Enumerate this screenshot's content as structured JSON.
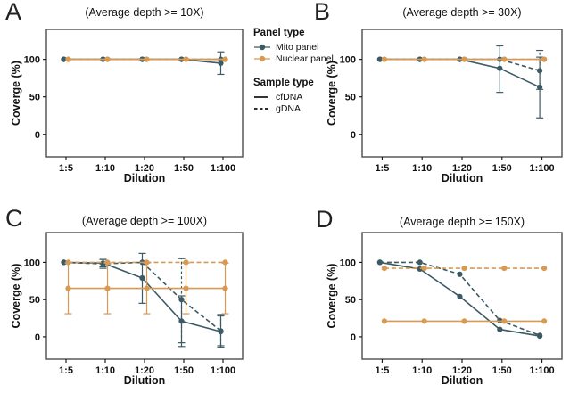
{
  "colors": {
    "mito": "#3c5a64",
    "nuclear": "#d79a55",
    "axis": "#4d4d4d",
    "text": "#111111",
    "sample_glyph": "#111111"
  },
  "legend": {
    "panel_type_title": "Panel type",
    "panel_items": [
      {
        "key": "mito",
        "label": "Mito panel"
      },
      {
        "key": "nuclear",
        "label": "Nuclear panel"
      }
    ],
    "sample_type_title": "Sample type",
    "sample_items": [
      {
        "key": "cfDNA",
        "label": "cfDNA",
        "dashed": false
      },
      {
        "key": "gDNA",
        "label": "gDNA",
        "dashed": true
      }
    ]
  },
  "chart_data": [
    {
      "type": "line",
      "label": "A",
      "title": "(Average depth >= 10X)",
      "xlabel": "Dilution",
      "ylabel": "Coverge (%)",
      "categories": [
        "1:5",
        "1:10",
        "1:20",
        "1:50",
        "1:100"
      ],
      "yticks": [
        0,
        50,
        100
      ],
      "ylim": [
        -30,
        140
      ],
      "grid": false,
      "series": [
        {
          "name": "Mito panel cfDNA",
          "panel": "mito",
          "sample": "cfDNA",
          "dashed": false,
          "values": [
            100,
            100,
            100,
            100,
            95
          ],
          "err_lo": [
            null,
            null,
            null,
            null,
            80
          ],
          "err_hi": [
            null,
            null,
            null,
            null,
            110
          ]
        },
        {
          "name": "Mito panel gDNA",
          "panel": "mito",
          "sample": "gDNA",
          "dashed": true,
          "values": [
            100,
            100,
            100,
            100,
            100
          ],
          "err_lo": [
            null,
            null,
            null,
            null,
            null
          ],
          "err_hi": [
            null,
            null,
            null,
            null,
            null
          ]
        },
        {
          "name": "Nuclear panel cfDNA",
          "panel": "nuclear",
          "sample": "cfDNA",
          "dashed": false,
          "values": [
            100,
            100,
            100,
            100,
            100
          ],
          "err_lo": [
            null,
            null,
            null,
            null,
            null
          ],
          "err_hi": [
            null,
            null,
            null,
            null,
            null
          ]
        },
        {
          "name": "Nuclear panel gDNA",
          "panel": "nuclear",
          "sample": "gDNA",
          "dashed": true,
          "values": [
            100,
            100,
            100,
            100,
            100
          ],
          "err_lo": [
            null,
            null,
            null,
            null,
            null
          ],
          "err_hi": [
            null,
            null,
            null,
            null,
            null
          ]
        }
      ]
    },
    {
      "type": "line",
      "label": "B",
      "title": "(Average depth >= 30X)",
      "xlabel": "Dilution",
      "ylabel": "Coverge (%)",
      "categories": [
        "1:5",
        "1:10",
        "1:20",
        "1:50",
        "1:100"
      ],
      "yticks": [
        0,
        50,
        100
      ],
      "ylim": [
        -30,
        140
      ],
      "grid": false,
      "series": [
        {
          "name": "Mito panel cfDNA",
          "panel": "mito",
          "sample": "cfDNA",
          "dashed": false,
          "values": [
            100,
            100,
            100,
            88,
            63
          ],
          "err_lo": [
            null,
            null,
            null,
            56,
            22
          ],
          "err_hi": [
            null,
            null,
            null,
            118,
            103
          ]
        },
        {
          "name": "Mito panel gDNA",
          "panel": "mito",
          "sample": "gDNA",
          "dashed": true,
          "values": [
            100,
            100,
            100,
            100,
            85
          ],
          "err_lo": [
            null,
            null,
            null,
            null,
            60
          ],
          "err_hi": [
            null,
            null,
            null,
            null,
            112
          ]
        },
        {
          "name": "Nuclear panel cfDNA",
          "panel": "nuclear",
          "sample": "cfDNA",
          "dashed": false,
          "values": [
            100,
            100,
            100,
            100,
            100
          ],
          "err_lo": [
            null,
            null,
            null,
            null,
            null
          ],
          "err_hi": [
            null,
            null,
            null,
            null,
            null
          ]
        },
        {
          "name": "Nuclear panel gDNA",
          "panel": "nuclear",
          "sample": "gDNA",
          "dashed": true,
          "values": [
            100,
            100,
            100,
            100,
            100
          ],
          "err_lo": [
            null,
            null,
            null,
            null,
            null
          ],
          "err_hi": [
            null,
            null,
            null,
            null,
            null
          ]
        }
      ]
    },
    {
      "type": "line",
      "label": "C",
      "title": "(Average depth >= 100X)",
      "xlabel": "Dilution",
      "ylabel": "Coverge (%)",
      "categories": [
        "1:5",
        "1:10",
        "1:20",
        "1:50",
        "1:100"
      ],
      "yticks": [
        0,
        50,
        100
      ],
      "ylim": [
        -30,
        140
      ],
      "grid": false,
      "series": [
        {
          "name": "Mito panel cfDNA",
          "panel": "mito",
          "sample": "cfDNA",
          "dashed": false,
          "values": [
            100,
            99,
            79,
            21,
            7
          ],
          "err_lo": [
            null,
            94,
            45,
            -13,
            -14
          ],
          "err_hi": [
            null,
            104,
            112,
            55,
            28
          ]
        },
        {
          "name": "Mito panel gDNA",
          "panel": "mito",
          "sample": "gDNA",
          "dashed": true,
          "values": [
            100,
            98,
            100,
            50,
            8
          ],
          "err_lo": [
            null,
            92,
            null,
            -8,
            -12
          ],
          "err_hi": [
            null,
            104,
            null,
            105,
            30
          ]
        },
        {
          "name": "Nuclear panel cfDNA",
          "panel": "nuclear",
          "sample": "cfDNA",
          "dashed": false,
          "values": [
            65,
            65,
            65,
            65,
            65
          ],
          "err_lo": [
            31,
            31,
            31,
            31,
            31
          ],
          "err_hi": [
            99,
            99,
            99,
            99,
            99
          ]
        },
        {
          "name": "Nuclear panel gDNA",
          "panel": "nuclear",
          "sample": "gDNA",
          "dashed": true,
          "values": [
            100,
            100,
            100,
            100,
            100
          ],
          "err_lo": [
            null,
            null,
            null,
            null,
            null
          ],
          "err_hi": [
            null,
            null,
            null,
            null,
            null
          ]
        }
      ]
    },
    {
      "type": "line",
      "label": "D",
      "title": "(Average depth >= 150X)",
      "xlabel": "Dilution",
      "ylabel": "Coverge (%)",
      "categories": [
        "1:5",
        "1:10",
        "1:20",
        "1:50",
        "1:100"
      ],
      "yticks": [
        0,
        50,
        100
      ],
      "ylim": [
        -30,
        140
      ],
      "grid": false,
      "series": [
        {
          "name": "Mito panel cfDNA",
          "panel": "mito",
          "sample": "cfDNA",
          "dashed": false,
          "values": [
            100,
            91,
            54,
            10,
            1
          ],
          "err_lo": [
            null,
            null,
            null,
            null,
            null
          ],
          "err_hi": [
            null,
            null,
            null,
            null,
            null
          ]
        },
        {
          "name": "Mito panel gDNA",
          "panel": "mito",
          "sample": "gDNA",
          "dashed": true,
          "values": [
            100,
            100,
            84,
            22,
            2
          ],
          "err_lo": [
            null,
            null,
            null,
            null,
            null
          ],
          "err_hi": [
            null,
            null,
            null,
            null,
            null
          ]
        },
        {
          "name": "Nuclear panel cfDNA",
          "panel": "nuclear",
          "sample": "cfDNA",
          "dashed": false,
          "values": [
            21,
            21,
            21,
            21,
            21
          ],
          "err_lo": [
            null,
            null,
            null,
            null,
            null
          ],
          "err_hi": [
            null,
            null,
            null,
            null,
            null
          ]
        },
        {
          "name": "Nuclear panel gDNA",
          "panel": "nuclear",
          "sample": "gDNA",
          "dashed": true,
          "values": [
            92,
            92,
            92,
            92,
            92
          ],
          "err_lo": [
            null,
            null,
            null,
            null,
            null
          ],
          "err_hi": [
            null,
            null,
            null,
            null,
            null
          ]
        }
      ]
    }
  ]
}
